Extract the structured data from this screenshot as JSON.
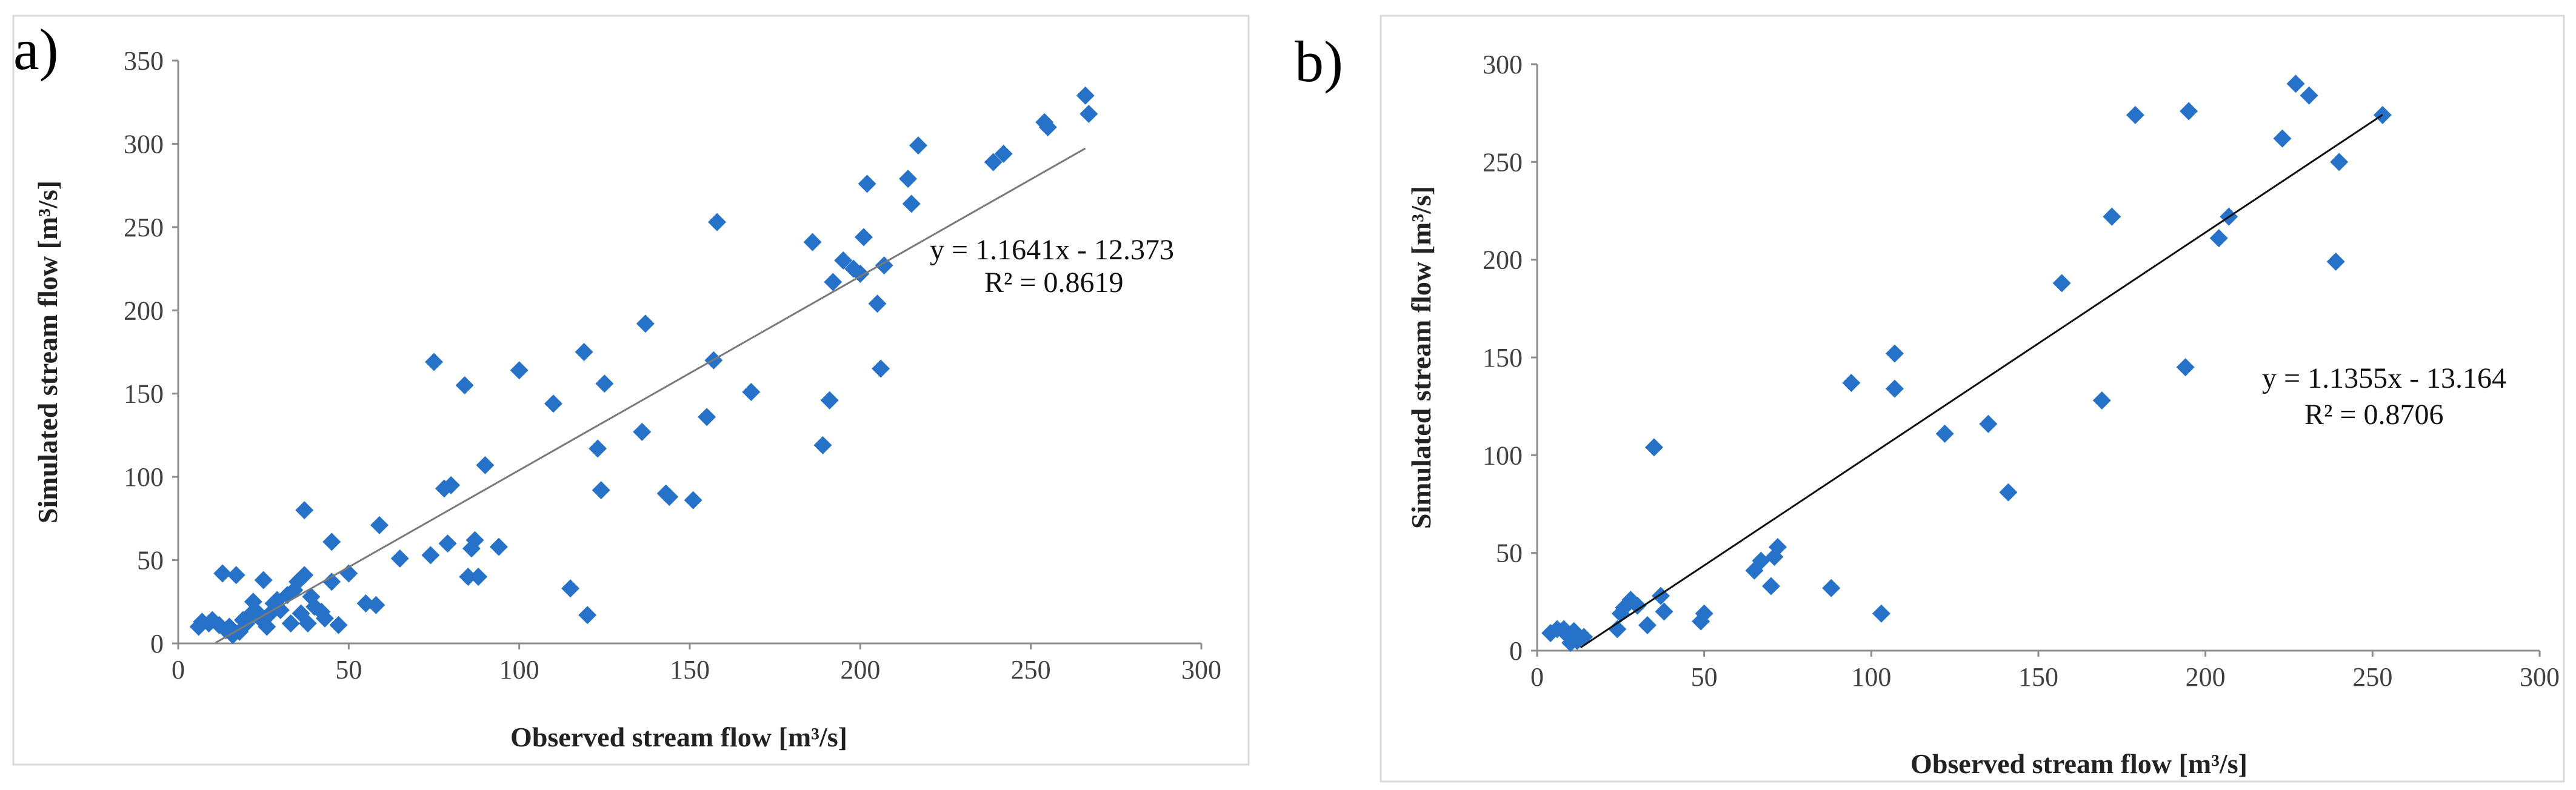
{
  "chart_data": [
    {
      "type": "scatter",
      "panel_label": "a)",
      "title": "",
      "xlabel": "Observed stream flow [m³/s]",
      "ylabel": "Simulated stream flow [m³/s]",
      "xlim": [
        0,
        300
      ],
      "ylim": [
        0,
        350
      ],
      "xticks": [
        0,
        50,
        100,
        150,
        200,
        250,
        300
      ],
      "yticks": [
        0,
        50,
        100,
        150,
        200,
        250,
        300,
        350
      ],
      "marker_color": "#2672c8",
      "trendline_color": "#7a7a7a",
      "trendline": {
        "slope": 1.1641,
        "intercept": -12.373,
        "x_range": [
          11,
          266
        ]
      },
      "equation": "y = 1.1641x - 12.373",
      "r2": "R² = 0.8619",
      "points": [
        [
          6,
          10
        ],
        [
          7,
          13
        ],
        [
          9,
          12
        ],
        [
          10,
          14
        ],
        [
          12,
          11
        ],
        [
          13,
          42
        ],
        [
          14,
          8
        ],
        [
          15,
          10
        ],
        [
          16,
          5
        ],
        [
          17,
          41
        ],
        [
          18,
          7
        ],
        [
          19,
          14
        ],
        [
          20,
          12
        ],
        [
          21,
          17
        ],
        [
          22,
          25
        ],
        [
          23,
          19
        ],
        [
          24,
          15
        ],
        [
          25,
          38
        ],
        [
          26,
          10
        ],
        [
          27,
          18
        ],
        [
          28,
          24
        ],
        [
          29,
          26
        ],
        [
          30,
          20
        ],
        [
          32,
          29
        ],
        [
          33,
          12
        ],
        [
          34,
          32
        ],
        [
          35,
          37
        ],
        [
          36,
          18
        ],
        [
          37,
          80
        ],
        [
          37,
          41
        ],
        [
          38,
          12
        ],
        [
          39,
          28
        ],
        [
          40,
          22
        ],
        [
          42,
          19
        ],
        [
          43,
          15
        ],
        [
          45,
          37
        ],
        [
          45,
          61
        ],
        [
          47,
          11
        ],
        [
          50,
          42
        ],
        [
          55,
          24
        ],
        [
          58,
          23
        ],
        [
          59,
          71
        ],
        [
          65,
          51
        ],
        [
          74,
          53
        ],
        [
          75,
          169
        ],
        [
          78,
          93
        ],
        [
          79,
          60
        ],
        [
          80,
          95
        ],
        [
          84,
          155
        ],
        [
          85,
          40
        ],
        [
          86,
          57
        ],
        [
          87,
          62
        ],
        [
          88,
          40
        ],
        [
          90,
          107
        ],
        [
          94,
          58
        ],
        [
          100,
          164
        ],
        [
          110,
          144
        ],
        [
          115,
          33
        ],
        [
          119,
          175
        ],
        [
          120,
          17
        ],
        [
          123,
          117
        ],
        [
          124,
          92
        ],
        [
          125,
          156
        ],
        [
          136,
          127
        ],
        [
          137,
          192
        ],
        [
          143,
          90
        ],
        [
          144,
          88
        ],
        [
          151,
          86
        ],
        [
          155,
          136
        ],
        [
          157,
          170
        ],
        [
          158,
          253
        ],
        [
          168,
          151
        ],
        [
          186,
          241
        ],
        [
          189,
          119
        ],
        [
          191,
          146
        ],
        [
          192,
          217
        ],
        [
          195,
          230
        ],
        [
          198,
          225
        ],
        [
          200,
          222
        ],
        [
          201,
          244
        ],
        [
          202,
          276
        ],
        [
          205,
          204
        ],
        [
          206,
          165
        ],
        [
          207,
          227
        ],
        [
          214,
          279
        ],
        [
          215,
          264
        ],
        [
          217,
          299
        ],
        [
          239,
          289
        ],
        [
          242,
          294
        ],
        [
          254,
          313
        ],
        [
          255,
          310
        ],
        [
          266,
          329
        ],
        [
          267,
          318
        ]
      ]
    },
    {
      "type": "scatter",
      "panel_label": "b)",
      "title": "",
      "xlabel": "Observed stream flow [m³/s]",
      "ylabel": "Simulated stream flow [m³/s]",
      "xlim": [
        0,
        300
      ],
      "ylim": [
        0,
        300
      ],
      "xticks": [
        0,
        50,
        100,
        150,
        200,
        250,
        300
      ],
      "yticks": [
        0,
        50,
        100,
        150,
        200,
        250,
        300
      ],
      "marker_color": "#2672c8",
      "trendline_color": "#111111",
      "trendline": {
        "slope": 1.1355,
        "intercept": -13.164,
        "x_range": [
          13,
          253
        ]
      },
      "equation": "y = 1.1355x - 13.164",
      "r2": "R² = 0.8706",
      "points": [
        [
          4,
          9
        ],
        [
          6,
          11
        ],
        [
          8,
          11
        ],
        [
          9,
          8
        ],
        [
          10,
          4
        ],
        [
          11,
          10
        ],
        [
          12,
          5
        ],
        [
          14,
          7
        ],
        [
          24,
          11
        ],
        [
          25,
          19
        ],
        [
          26,
          22
        ],
        [
          28,
          26
        ],
        [
          30,
          23
        ],
        [
          33,
          13
        ],
        [
          35,
          104
        ],
        [
          37,
          28
        ],
        [
          38,
          20
        ],
        [
          49,
          15
        ],
        [
          50,
          19
        ],
        [
          65,
          41
        ],
        [
          67,
          46
        ],
        [
          70,
          33
        ],
        [
          71,
          48
        ],
        [
          72,
          53
        ],
        [
          88,
          32
        ],
        [
          94,
          137
        ],
        [
          103,
          19
        ],
        [
          107,
          134
        ],
        [
          107,
          152
        ],
        [
          122,
          111
        ],
        [
          135,
          116
        ],
        [
          141,
          81
        ],
        [
          157,
          188
        ],
        [
          169,
          128
        ],
        [
          172,
          222
        ],
        [
          179,
          274
        ],
        [
          194,
          145
        ],
        [
          195,
          276
        ],
        [
          204,
          211
        ],
        [
          207,
          222
        ],
        [
          223,
          262
        ],
        [
          227,
          290
        ],
        [
          231,
          284
        ],
        [
          239,
          199
        ],
        [
          240,
          250
        ],
        [
          253,
          274
        ]
      ]
    }
  ]
}
